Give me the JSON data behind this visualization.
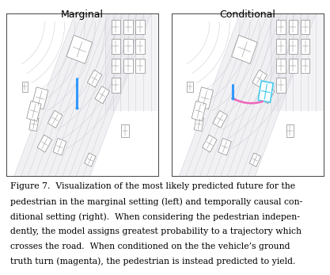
{
  "title_left": "Marginal",
  "title_right": "Conditional",
  "caption_lines": [
    "Figure 7.  Visualization of the most likely predicted future for the",
    "pedestrian in the marginal setting (left) and temporally causal con-",
    "ditional setting (right).  When considering the pedestrian indepen-",
    "dently, the model assigns greatest probability to a trajectory which",
    "crosses the road.  When conditioned on the the vehicle’s ground",
    "truth turn (magenta), the pedestrian is instead predicted to yield."
  ],
  "bg_color": "#ffffff",
  "road_line_color": "#d0d0d8",
  "road_fill_color": "#e8e8ee",
  "car_edge_color": "#888888",
  "car_face_color": "#ffffff",
  "traj_blue": "#3399ff",
  "traj_magenta": "#ee66bb",
  "cyan_car_edge": "#44ccee",
  "font_size_title": 9,
  "font_size_caption": 7.8
}
